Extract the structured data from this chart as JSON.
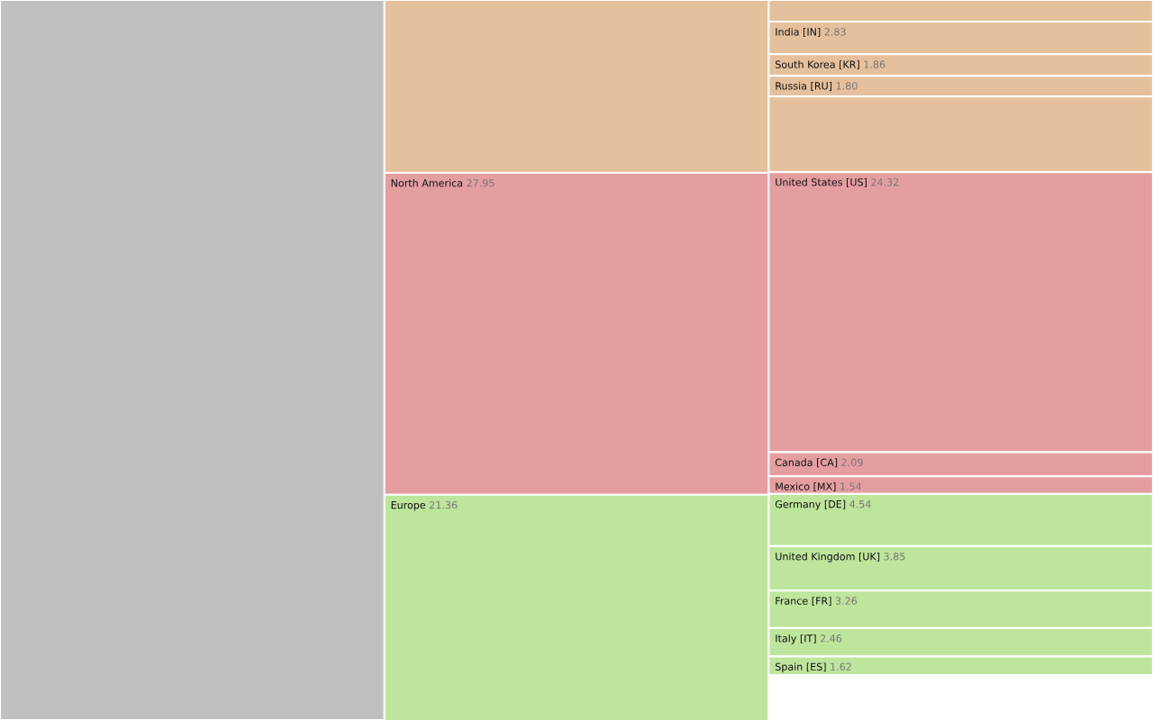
{
  "chart_data": [
    {
      "type": "other",
      "categories": [
        null
      ],
      "values": [
        null
      ],
      "colors": [
        "#c0c0c0"
      ]
    },
    {
      "type": "other",
      "categories": [
        null,
        "North America",
        "Europe"
      ],
      "values": [
        null,
        27.95,
        21.36
      ],
      "value_labels": [
        null,
        "27.95",
        "21.36"
      ],
      "colors": [
        "#e5c09c",
        "#e59ea0",
        "#bde59c"
      ]
    },
    {
      "type": "other",
      "categories": [
        null,
        "India [IN]",
        "South Korea [KR]",
        "Russia [RU]",
        null,
        "United States [US]",
        "Canada [CA]",
        "Mexico [MX]",
        "Germany [DE]",
        "United Kingdom [UK]",
        "France [FR]",
        "Italy [IT]",
        "Spain [ES]"
      ],
      "values": [
        null,
        2.83,
        1.86,
        1.8,
        null,
        24.32,
        2.09,
        1.54,
        4.54,
        3.85,
        3.26,
        2.46,
        1.62
      ],
      "value_labels": [
        null,
        "2.83",
        "1.86",
        "1.80",
        null,
        "24.32",
        "2.09",
        "1.54",
        "4.54",
        "3.85",
        "3.26",
        "2.46",
        "1.62"
      ],
      "colors": [
        "#e5c09c",
        "#e5c09c",
        "#e5c09c",
        "#e5c09c",
        "#e5c09c",
        "#e59ea0",
        "#e59ea0",
        "#e59ea0",
        "#bde59c",
        "#bde59c",
        "#bde59c",
        "#bde59c",
        "#bde59c"
      ]
    }
  ]
}
